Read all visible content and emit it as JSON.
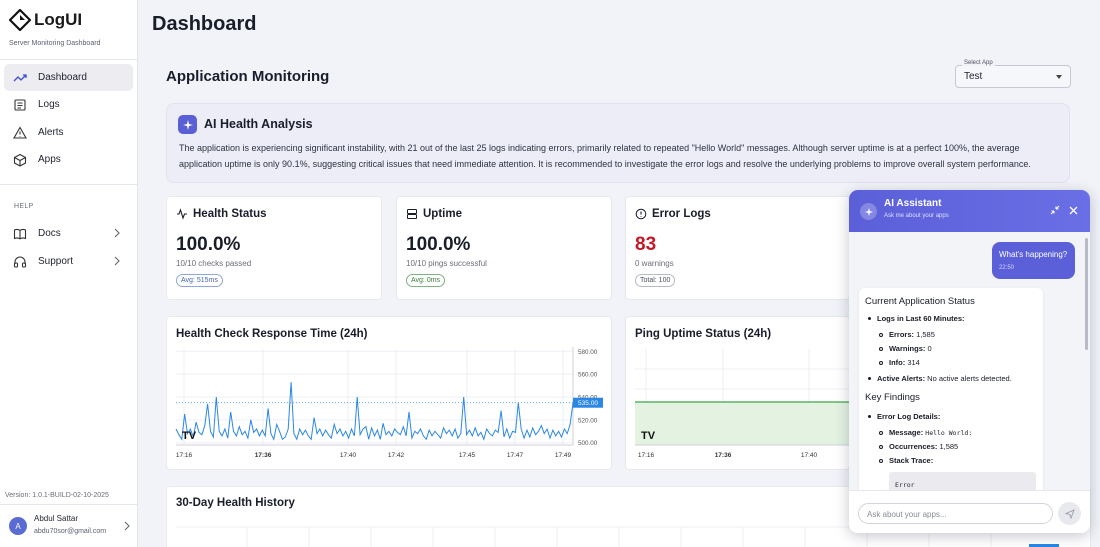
{
  "sidebar": {
    "logo": "LogUI",
    "subtitle": "Server Monitoring Dashboard",
    "nav": [
      {
        "label": "Dashboard",
        "icon": "trending-up-icon"
      },
      {
        "label": "Logs",
        "icon": "logs-icon"
      },
      {
        "label": "Alerts",
        "icon": "alert-triangle-icon"
      },
      {
        "label": "Apps",
        "icon": "box-icon"
      }
    ],
    "help_label": "HELP",
    "help_items": [
      {
        "label": "Docs",
        "icon": "book-icon"
      },
      {
        "label": "Support",
        "icon": "headphones-icon"
      }
    ],
    "version": "Version: 1.0.1-BUILD-02-10-2025",
    "user": {
      "initial": "A",
      "name": "Abdul Sattar",
      "email": "abdu70sor@gmail.com"
    }
  },
  "page_title": "Dashboard",
  "section_title": "Application Monitoring",
  "select_app": {
    "legend": "Select App",
    "value": "Test"
  },
  "ai_analysis": {
    "title": "AI Health Analysis",
    "text": "The application is experiencing significant instability, with 21 out of the last 25 logs indicating errors, primarily related to repeated \"Hello World\" messages. Although server uptime is at a perfect 100%, the average application uptime is only 90.1%, suggesting critical issues that need immediate attention. It is recommended to investigate the error logs and resolve the underlying problems to improve overall system performance."
  },
  "stats": {
    "health": {
      "title": "Health Status",
      "value": "100.0%",
      "sub": "10/10 checks passed",
      "chip": "Avg: 515ms"
    },
    "uptime": {
      "title": "Uptime",
      "value": "100.0%",
      "sub": "10/10 pings successful",
      "chip": "Avg: 0ms"
    },
    "errors": {
      "title": "Error Logs",
      "value": "83",
      "sub": "0 warnings",
      "chip": "Total: 100"
    }
  },
  "colors": {
    "accent": "#5b5fd8",
    "line": "#2b87e6",
    "ping": "#3aa84a",
    "error": "#c4182a"
  },
  "charts": {
    "response_title": "Health Check Response Time (24h)",
    "ping_title": "Ping Uptime Status (24h)",
    "history_title": "30-Day Health History",
    "tv_logo": "TV"
  },
  "chart_data": [
    {
      "type": "line",
      "title": "Health Check Response Time (24h)",
      "x_ticks": [
        "17:16",
        "17:36",
        "17:40",
        "17:42",
        "17:45",
        "17:47",
        "17:49"
      ],
      "y_ticks": [
        500,
        520,
        540,
        560,
        580
      ],
      "y_tick_labels": [
        "500.00",
        "520.00",
        "540.00",
        "560.00",
        "580.00"
      ],
      "ylim": [
        498,
        582
      ],
      "last_value_label": "535.00",
      "series": [
        {
          "values": [
            512,
            507,
            503,
            525,
            508,
            512,
            505,
            518,
            509,
            507,
            515,
            534,
            510,
            505,
            540,
            510,
            506,
            512,
            504,
            527,
            510,
            506,
            514,
            507,
            510,
            504,
            520,
            509,
            512,
            506,
            511,
            506,
            530,
            508,
            503,
            516,
            510,
            503,
            505,
            512,
            553,
            508,
            503,
            512,
            507,
            511,
            506,
            503,
            522,
            508,
            512,
            506,
            511,
            507,
            504,
            516,
            508,
            512,
            506,
            510,
            504,
            512,
            506,
            540,
            507,
            512,
            514,
            503,
            513,
            506,
            511,
            503,
            517,
            507,
            510,
            506,
            512,
            509,
            507,
            514,
            506,
            527,
            504,
            510,
            508,
            512,
            506,
            503,
            511,
            506,
            510,
            507,
            504,
            513,
            508,
            511,
            506,
            512,
            504,
            508,
            540,
            507,
            511,
            506,
            513,
            506,
            509,
            503,
            512,
            508,
            506,
            511,
            509,
            528,
            505,
            512,
            504,
            510,
            509,
            535,
            512,
            504,
            511,
            505,
            513,
            507,
            510,
            515,
            508,
            512,
            504,
            511,
            506,
            510,
            505,
            512,
            508,
            516,
            535
          ]
        }
      ]
    },
    {
      "type": "area",
      "title": "Ping Uptime Status (24h)",
      "x_ticks": [
        "17:16",
        "17:36",
        "17:40"
      ],
      "series": [
        {
          "values": [
            1,
            1,
            1,
            1,
            1,
            1,
            1,
            1,
            1,
            1
          ]
        }
      ]
    }
  ],
  "chat": {
    "title": "AI Assistant",
    "subtitle": "Ask me about your apps",
    "user_message": "What's happening?",
    "user_time": "22:50",
    "status_heading": "Current Application Status",
    "logs_label": "Logs in Last 60 Minutes:",
    "errors_label": "Errors:",
    "errors_value": "1,585",
    "warnings_label": "Warnings:",
    "warnings_value": "0",
    "info_label": "Info:",
    "info_value": "314",
    "alerts_label": "Active Alerts:",
    "alerts_value": "No active alerts detected.",
    "findings_heading": "Key Findings",
    "error_details_label": "Error Log Details:",
    "message_label": "Message:",
    "message_value": "Hello World:",
    "occurrences_label": "Occurrences:",
    "occurrences_value": "1,585",
    "stack_label": "Stack Trace:",
    "code_text": "Error",
    "input_placeholder": "Ask about your apps..."
  }
}
